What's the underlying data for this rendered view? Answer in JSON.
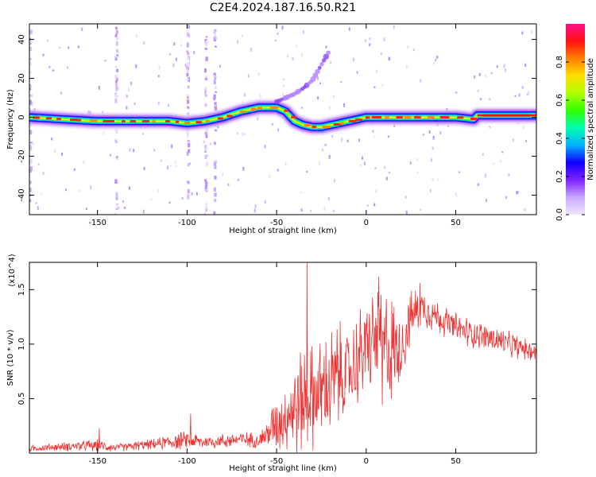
{
  "figure": {
    "title": "C2E4.2024.187.16.50.R21"
  },
  "chart_data": [
    {
      "type": "heatmap",
      "xlabel": "Height of straight line (km)",
      "ylabel": "Frequency (Hz)",
      "xlim": [
        -188,
        95
      ],
      "ylim": [
        -50,
        48
      ],
      "xticks": [
        -150,
        -100,
        -50,
        0,
        50
      ],
      "yticks": [
        -40,
        -20,
        0,
        20,
        40
      ],
      "colorbar": {
        "label": "Normalized spectral amplitude",
        "range": [
          0.0,
          1.0
        ],
        "ticks": [
          0.0,
          0.2,
          0.4,
          0.6,
          0.8
        ],
        "tick_labels": [
          "0.0",
          "0.2",
          "0.4",
          "0.6",
          "0.8"
        ],
        "colors": [
          "#f0e6ff",
          "#c8a8ff",
          "#8020ff",
          "#1000ff",
          "#00b0ff",
          "#00ffb0",
          "#30ff00",
          "#b0ff00",
          "#ffe000",
          "#ff8000",
          "#ff1010",
          "#ff1090"
        ]
      },
      "ridge": {
        "x": [
          -188,
          -170,
          -150,
          -130,
          -110,
          -100,
          -90,
          -80,
          -70,
          -60,
          -50,
          -45,
          -40,
          -35,
          -30,
          -25,
          -20,
          -10,
          0,
          10,
          20,
          30,
          40,
          50,
          60,
          62,
          70,
          80,
          95
        ],
        "freq": [
          0,
          -1,
          -2,
          -2,
          -2,
          -3,
          -2,
          0,
          3,
          5,
          5,
          3,
          -2,
          -4,
          -5,
          -5,
          -4,
          -2,
          0,
          0,
          0,
          0,
          0,
          0,
          -1,
          1,
          1,
          1,
          1
        ]
      },
      "dispersed_branch": {
        "x": [
          -50,
          -45,
          -40,
          -35,
          -30,
          -25,
          -20
        ],
        "freq": [
          8,
          10,
          12,
          15,
          19,
          27,
          35
        ]
      },
      "vertical_streaks_x": [
        -188,
        -140,
        -100,
        -90,
        -85
      ]
    },
    {
      "type": "line",
      "xlabel": "Height of straight line (km)",
      "ylabel": "SNR (10 * v/v)",
      "y_multiplier": "(x10^4)",
      "xlim": [
        -188,
        95
      ],
      "ylim": [
        0.0,
        1.75
      ],
      "xticks": [
        -150,
        -100,
        -50,
        0,
        50
      ],
      "yticks": [
        0.5,
        1.0,
        1.5
      ],
      "ytick_labels": [
        "0.5",
        "1.0",
        "1.5"
      ],
      "series": [
        {
          "color": "#ee3333",
          "envelope": {
            "x": [
              -188,
              -170,
              -150,
              -140,
              -120,
              -100,
              -90,
              -80,
              -70,
              -60,
              -55,
              -50,
              -45,
              -40,
              -35,
              -30,
              -25,
              -20,
              -15,
              -10,
              -5,
              0,
              5,
              10,
              15,
              20,
              25,
              30,
              35,
              40,
              50,
              60,
              70,
              80,
              95
            ],
            "mean": [
              0.04,
              0.06,
              0.07,
              0.05,
              0.08,
              0.12,
              0.1,
              0.11,
              0.13,
              0.12,
              0.18,
              0.28,
              0.35,
              0.42,
              0.5,
              0.52,
              0.58,
              0.6,
              0.72,
              0.72,
              0.85,
              0.98,
              1.05,
              1.0,
              0.95,
              0.98,
              1.25,
              1.35,
              1.3,
              1.25,
              1.15,
              1.1,
              1.05,
              1.0,
              0.92
            ],
            "amp": [
              0.03,
              0.04,
              0.06,
              0.04,
              0.05,
              0.09,
              0.06,
              0.07,
              0.08,
              0.07,
              0.15,
              0.28,
              0.35,
              0.45,
              0.55,
              0.5,
              0.5,
              0.55,
              0.5,
              0.45,
              0.45,
              0.45,
              0.5,
              0.55,
              0.5,
              0.35,
              0.25,
              0.2,
              0.18,
              0.16,
              0.14,
              0.14,
              0.14,
              0.12,
              0.1
            ]
          },
          "peaks": [
            {
              "x": -149,
              "y": 0.23
            },
            {
              "x": -98,
              "y": 0.36
            },
            {
              "x": -33,
              "y": 1.78
            },
            {
              "x": 7,
              "y": 1.62
            },
            {
              "x": 9,
              "y": 0.44
            },
            {
              "x": 30,
              "y": 1.56
            }
          ]
        }
      ]
    }
  ]
}
